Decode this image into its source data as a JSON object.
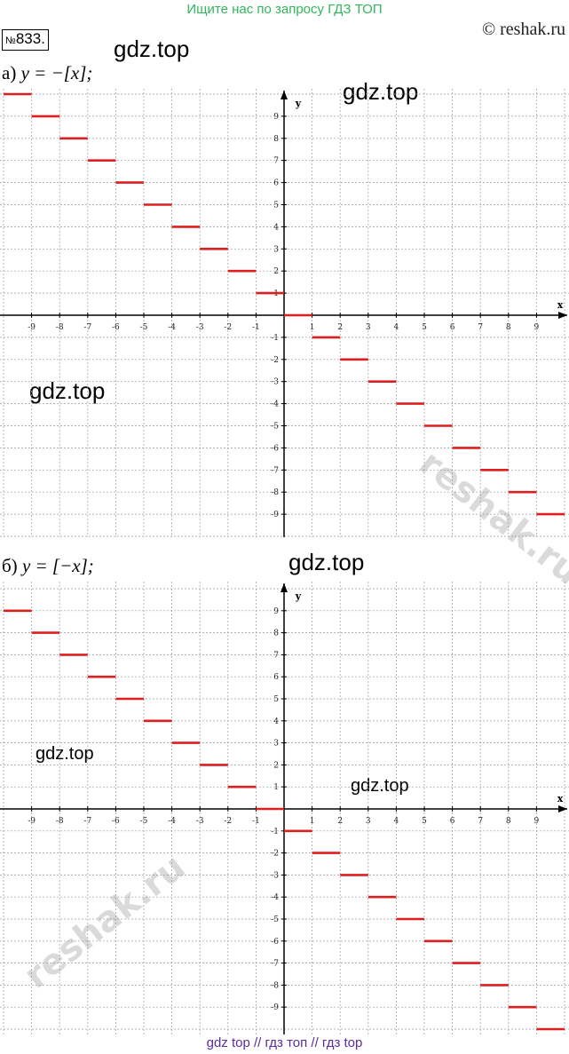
{
  "banner": "Ищите нас по запросу ГДЗ ТОП",
  "problem": {
    "prefix": "№",
    "number": "833."
  },
  "copyright": "© reshak.ru",
  "watermarks": [
    "gdz.top",
    "gdz.top",
    "gdz.top",
    "gdz.top",
    "gdz.top",
    "gdz.top"
  ],
  "reshak_watermark": "reshak.ru",
  "footer": "gdz top  //  гдз топ  //  гдз top",
  "colors": {
    "step": "#dd1f1f",
    "grid": "#9a9a9a",
    "axis": "#000000"
  },
  "chart_data": [
    {
      "type": "line",
      "label_prefix": "а)",
      "formula": "y = −[x];",
      "xlabel": "x",
      "ylabel": "y",
      "xlim": [
        -10,
        10
      ],
      "ylim": [
        -10,
        10
      ],
      "grid": true,
      "x_ticks": [
        "-9",
        "-8",
        "-7",
        "-6",
        "-5",
        "-4",
        "-3",
        "-2",
        "-1",
        "1",
        "2",
        "3",
        "4",
        "5",
        "6",
        "7",
        "8",
        "9"
      ],
      "y_ticks": [
        "9",
        "8",
        "7",
        "6",
        "5",
        "4",
        "3",
        "2",
        "1",
        "-1",
        "-2",
        "-3",
        "-4",
        "-5",
        "-6",
        "-7",
        "-8",
        "-9"
      ],
      "segments": [
        {
          "x1": -10,
          "x2": -9,
          "y": 10
        },
        {
          "x1": -9,
          "x2": -8,
          "y": 9
        },
        {
          "x1": -8,
          "x2": -7,
          "y": 8
        },
        {
          "x1": -7,
          "x2": -6,
          "y": 7
        },
        {
          "x1": -6,
          "x2": -5,
          "y": 6
        },
        {
          "x1": -5,
          "x2": -4,
          "y": 5
        },
        {
          "x1": -4,
          "x2": -3,
          "y": 4
        },
        {
          "x1": -3,
          "x2": -2,
          "y": 3
        },
        {
          "x1": -2,
          "x2": -1,
          "y": 2
        },
        {
          "x1": -1,
          "x2": 0,
          "y": 1
        },
        {
          "x1": 0,
          "x2": 1,
          "y": 0
        },
        {
          "x1": 1,
          "x2": 2,
          "y": -1
        },
        {
          "x1": 2,
          "x2": 3,
          "y": -2
        },
        {
          "x1": 3,
          "x2": 4,
          "y": -3
        },
        {
          "x1": 4,
          "x2": 5,
          "y": -4
        },
        {
          "x1": 5,
          "x2": 6,
          "y": -5
        },
        {
          "x1": 6,
          "x2": 7,
          "y": -6
        },
        {
          "x1": 7,
          "x2": 8,
          "y": -7
        },
        {
          "x1": 8,
          "x2": 9,
          "y": -8
        },
        {
          "x1": 9,
          "x2": 10,
          "y": -9
        }
      ]
    },
    {
      "type": "line",
      "label_prefix": "б)",
      "formula": "y = [−x];",
      "xlabel": "x",
      "ylabel": "y",
      "xlim": [
        -10,
        10
      ],
      "ylim": [
        -10,
        10
      ],
      "grid": true,
      "x_ticks": [
        "-9",
        "-8",
        "-7",
        "-6",
        "-5",
        "-4",
        "-3",
        "-2",
        "-1",
        "1",
        "2",
        "3",
        "4",
        "5",
        "6",
        "7",
        "8",
        "9"
      ],
      "y_ticks": [
        "9",
        "8",
        "7",
        "6",
        "5",
        "4",
        "3",
        "2",
        "1",
        "-1",
        "-2",
        "-3",
        "-4",
        "-5",
        "-6",
        "-7",
        "-8",
        "-9"
      ],
      "segments": [
        {
          "x1": -10,
          "x2": -9,
          "y": 9
        },
        {
          "x1": -9,
          "x2": -8,
          "y": 8
        },
        {
          "x1": -8,
          "x2": -7,
          "y": 7
        },
        {
          "x1": -7,
          "x2": -6,
          "y": 6
        },
        {
          "x1": -6,
          "x2": -5,
          "y": 5
        },
        {
          "x1": -5,
          "x2": -4,
          "y": 4
        },
        {
          "x1": -4,
          "x2": -3,
          "y": 3
        },
        {
          "x1": -3,
          "x2": -2,
          "y": 2
        },
        {
          "x1": -2,
          "x2": -1,
          "y": 1
        },
        {
          "x1": -1,
          "x2": 0,
          "y": 0
        },
        {
          "x1": 0,
          "x2": 1,
          "y": -1
        },
        {
          "x1": 1,
          "x2": 2,
          "y": -2
        },
        {
          "x1": 2,
          "x2": 3,
          "y": -3
        },
        {
          "x1": 3,
          "x2": 4,
          "y": -4
        },
        {
          "x1": 4,
          "x2": 5,
          "y": -5
        },
        {
          "x1": 5,
          "x2": 6,
          "y": -6
        },
        {
          "x1": 6,
          "x2": 7,
          "y": -7
        },
        {
          "x1": 7,
          "x2": 8,
          "y": -8
        },
        {
          "x1": 8,
          "x2": 9,
          "y": -9
        },
        {
          "x1": 9,
          "x2": 10,
          "y": -10
        }
      ]
    }
  ]
}
